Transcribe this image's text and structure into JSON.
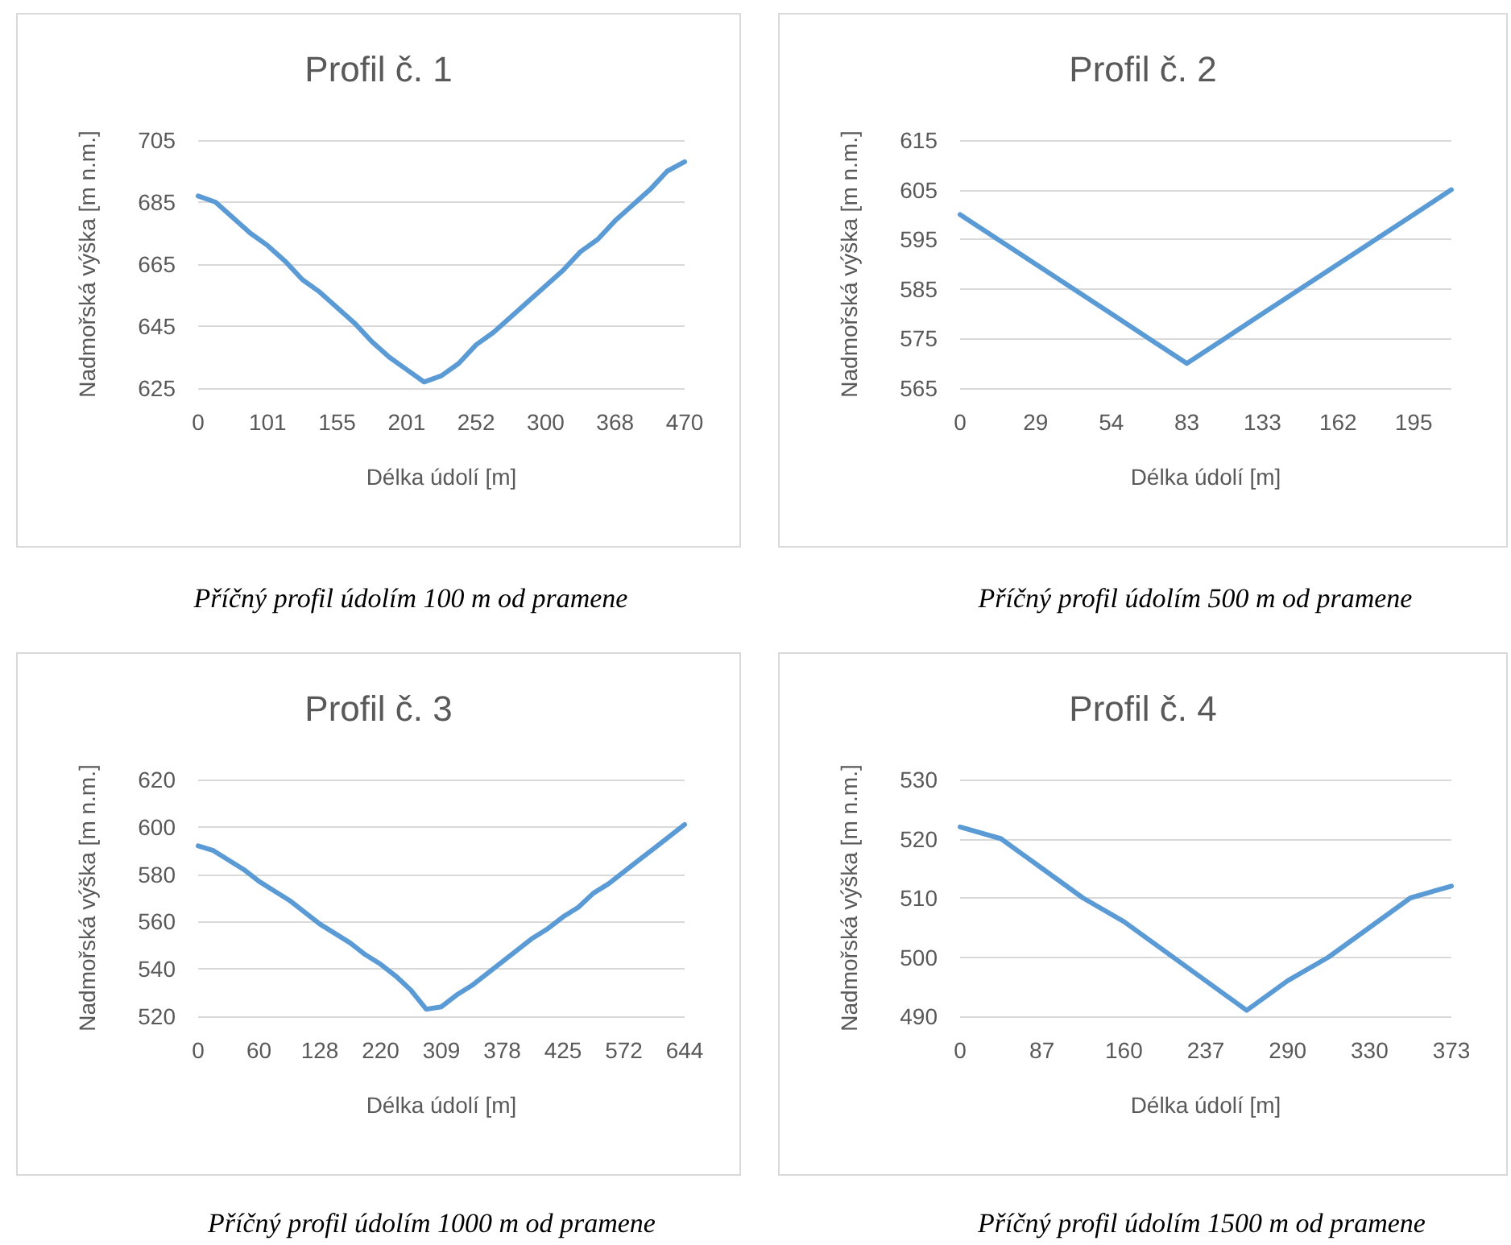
{
  "chart_data": [
    {
      "type": "line",
      "title": "Profil č. 1",
      "xlabel": "Délka údolí [m]",
      "ylabel": "Nadmořská výška [m n.m.]",
      "annotations": [
        "Příčný profil údolím 100 m od pramene"
      ],
      "categories": [
        "0",
        null,
        null,
        null,
        "101",
        null,
        null,
        null,
        "155",
        null,
        null,
        null,
        "201",
        null,
        null,
        null,
        "252",
        null,
        null,
        null,
        "300",
        null,
        null,
        null,
        "368",
        null,
        null,
        null,
        "470"
      ],
      "series": [
        {
          "color": "#5b9bd5",
          "values": [
            687,
            685,
            680,
            675,
            671,
            666,
            660,
            656,
            651,
            646,
            640,
            635,
            631,
            627,
            629,
            633,
            639,
            643,
            648,
            653,
            658,
            663,
            669,
            673,
            679,
            684,
            689,
            695,
            698
          ]
        }
      ],
      "ylim": [
        625,
        705
      ],
      "yticks": [
        625,
        645,
        665,
        685,
        705
      ],
      "grid": "y",
      "marker": "none",
      "line_style": "solid"
    },
    {
      "type": "line",
      "title": "Profil č. 2",
      "xlabel": "Délka údolí [m]",
      "ylabel": "Nadmořská výška [m n.m.]",
      "annotations": [
        "Příčný profil údolím 500 m od pramene"
      ],
      "categories": [
        "0",
        null,
        "29",
        null,
        "54",
        null,
        "83",
        null,
        "133",
        null,
        "162",
        null,
        "195",
        null
      ],
      "series": [
        {
          "color": "#5b9bd5",
          "values": [
            600,
            595,
            590,
            585,
            580,
            575,
            570,
            575,
            580,
            585,
            590,
            595,
            600,
            605
          ]
        }
      ],
      "ylim": [
        565,
        615
      ],
      "yticks": [
        565,
        575,
        585,
        595,
        605,
        615
      ],
      "grid": "y",
      "marker": "none",
      "line_style": "solid"
    },
    {
      "type": "line",
      "title": "Profil č. 3",
      "xlabel": "Délka údolí [m]",
      "ylabel": "Nadmořská výška [m n.m.]",
      "annotations": [
        "Příčný profil údolím 1000 m od pramene"
      ],
      "categories": [
        "0",
        null,
        null,
        null,
        "60",
        null,
        null,
        null,
        "128",
        null,
        null,
        null,
        "220",
        null,
        null,
        null,
        "309",
        null,
        null,
        null,
        "378",
        null,
        null,
        null,
        "425",
        null,
        null,
        null,
        "572",
        null,
        null,
        null,
        "644"
      ],
      "series": [
        {
          "color": "#5b9bd5",
          "values": [
            592,
            590,
            586,
            582,
            577,
            573,
            569,
            564,
            559,
            555,
            551,
            546,
            542,
            537,
            531,
            523,
            524,
            529,
            533,
            538,
            543,
            548,
            553,
            557,
            562,
            566,
            572,
            576,
            581,
            586,
            591,
            596,
            601
          ]
        }
      ],
      "ylim": [
        520,
        620
      ],
      "yticks": [
        520,
        540,
        560,
        580,
        600,
        620
      ],
      "grid": "y",
      "marker": "none",
      "line_style": "solid"
    },
    {
      "type": "line",
      "title": "Profil č. 4",
      "xlabel": "Délka údolí [m]",
      "ylabel": "Nadmořská výška [m n.m.]",
      "annotations": [
        "Příčný profil údolím 1500 m od pramene"
      ],
      "categories": [
        "0",
        null,
        "87",
        null,
        "160",
        null,
        "237",
        null,
        "290",
        null,
        "330",
        null,
        "373"
      ],
      "series": [
        {
          "color": "#5b9bd5",
          "values": [
            522,
            520,
            515,
            510,
            506,
            501,
            496,
            491,
            496,
            500,
            505,
            510,
            512
          ]
        }
      ],
      "ylim": [
        490,
        530
      ],
      "yticks": [
        490,
        500,
        510,
        520,
        530
      ],
      "grid": "y",
      "marker": "none",
      "line_style": "solid"
    }
  ]
}
